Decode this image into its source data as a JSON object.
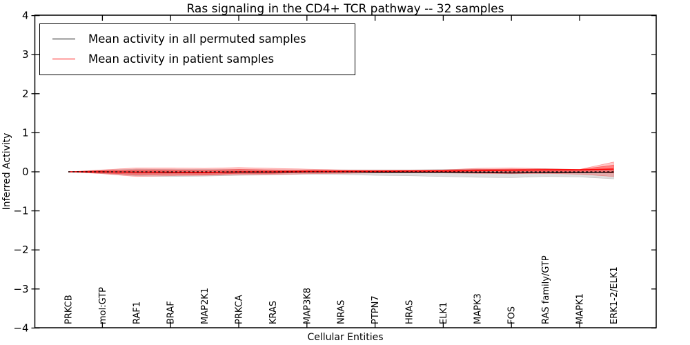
{
  "title": "Ras signaling in the CD4+ TCR pathway -- 32 samples",
  "axes": {
    "xlabel": "Cellular Entities",
    "ylabel": "Inferred Activity"
  },
  "legend": {
    "items": [
      {
        "label": "Mean activity in all permuted samples",
        "color": "#000000"
      },
      {
        "label": "Mean activity in patient samples",
        "color": "#ff0000"
      }
    ]
  },
  "chart_data": {
    "type": "line",
    "title": "Ras signaling in the CD4+ TCR pathway -- 32 samples",
    "xlabel": "Cellular Entities",
    "ylabel": "Inferred Activity",
    "ylim": [
      -4,
      4
    ],
    "yticks": [
      4,
      3,
      2,
      1,
      0,
      -1,
      -2,
      -3,
      -4
    ],
    "grid": false,
    "legend_position": "upper left",
    "categories": [
      "PRKCB",
      "mol:GTP",
      "RAF1",
      "BRAF",
      "MAP2K1",
      "PRKCA",
      "KRAS",
      "MAP3K8",
      "NRAS",
      "PTPN7",
      "HRAS",
      "ELK1",
      "MAPK3",
      "FOS",
      "RAS family/GTP",
      "MAPK1",
      "ERK1-2/ELK1"
    ],
    "series": [
      {
        "name": "Mean activity in all permuted samples",
        "color": "#000000",
        "linestyle": "solid",
        "values": [
          0,
          0,
          -0.01,
          -0.02,
          -0.02,
          -0.01,
          -0.01,
          0,
          0,
          -0.01,
          -0.01,
          -0.01,
          -0.02,
          -0.03,
          -0.02,
          -0.02,
          -0.01
        ]
      },
      {
        "name": "Mean activity in patient samples",
        "color": "#ff0000",
        "linestyle": "solid",
        "values": [
          0,
          0,
          -0.01,
          -0.01,
          -0.02,
          0,
          0,
          0.01,
          0.01,
          0.01,
          0.02,
          0.02,
          0.03,
          0.04,
          0.05,
          0.05,
          0.07
        ]
      },
      {
        "name": "zero reference",
        "color": "#000000",
        "linestyle": "dashed",
        "values": [
          0,
          0,
          0,
          0,
          0,
          0,
          0,
          0,
          0,
          0,
          0,
          0,
          0,
          0,
          0,
          0,
          0
        ]
      }
    ],
    "bands": [
      {
        "name": "permuted samples spread",
        "color": "#888888",
        "opacity": 0.28,
        "high": [
          0,
          0.04,
          0.07,
          0.06,
          0.06,
          0.06,
          0.05,
          0.05,
          0.05,
          0.05,
          0.05,
          0.06,
          0.07,
          0.06,
          0.08,
          0.06,
          0.06
        ],
        "low": [
          0,
          -0.04,
          -0.1,
          -0.12,
          -0.11,
          -0.09,
          -0.08,
          -0.06,
          -0.07,
          -0.09,
          -0.1,
          -0.12,
          -0.14,
          -0.15,
          -0.12,
          -0.13,
          -0.18
        ]
      },
      {
        "name": "patient samples spread (outer)",
        "color": "#ff0000",
        "opacity": 0.22,
        "high": [
          0,
          0.05,
          0.1,
          0.1,
          0.09,
          0.11,
          0.09,
          0.07,
          0.05,
          0.04,
          0.04,
          0.05,
          0.09,
          0.1,
          0.08,
          0.06,
          0.25
        ],
        "low": [
          0,
          -0.05,
          -0.12,
          -0.1,
          -0.09,
          -0.08,
          -0.07,
          -0.05,
          -0.04,
          -0.03,
          -0.03,
          -0.03,
          -0.04,
          -0.05,
          -0.04,
          -0.06,
          -0.12
        ]
      },
      {
        "name": "patient samples spread (inner)",
        "color": "#ff0000",
        "opacity": 0.35,
        "high": [
          0,
          0.03,
          0.05,
          0.05,
          0.04,
          0.06,
          0.05,
          0.04,
          0.03,
          0.03,
          0.03,
          0.04,
          0.06,
          0.07,
          0.07,
          0.06,
          0.17
        ],
        "low": [
          0,
          -0.03,
          -0.07,
          -0.06,
          -0.07,
          -0.04,
          -0.04,
          -0.02,
          -0.02,
          -0.01,
          -0.01,
          -0.01,
          -0.01,
          -0.01,
          0.0,
          -0.01,
          -0.03
        ]
      }
    ]
  }
}
